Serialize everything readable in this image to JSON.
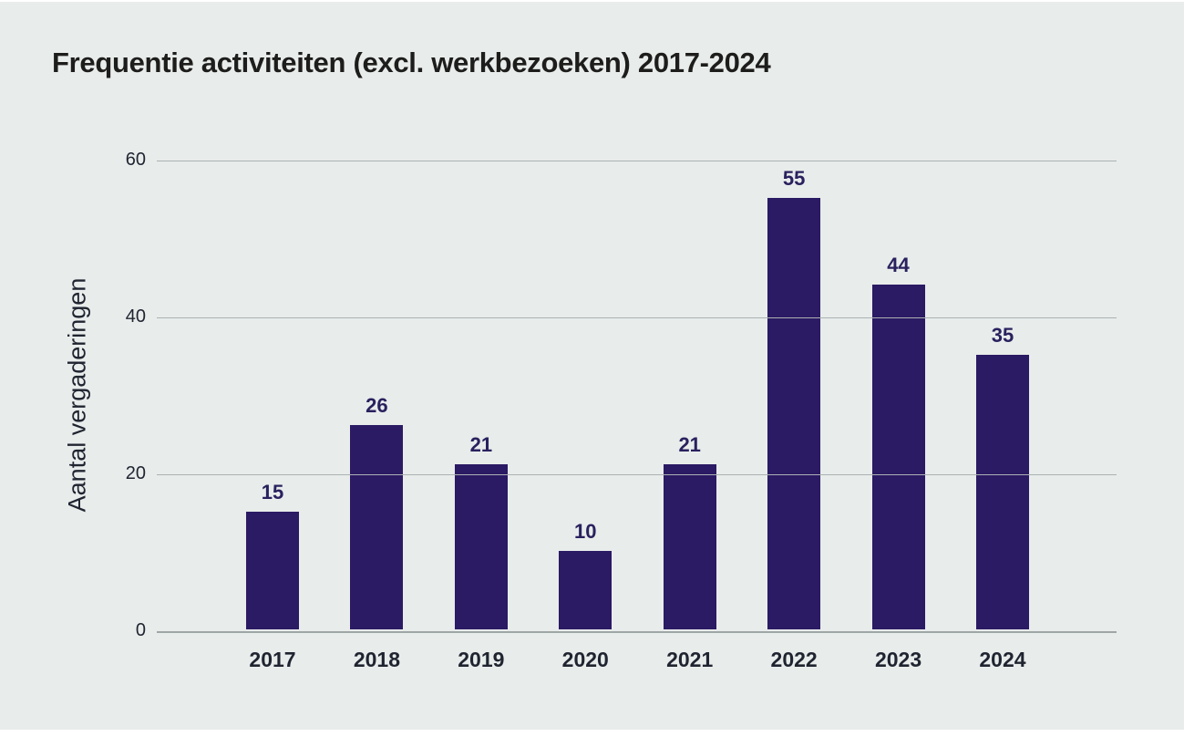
{
  "page": {
    "background": "#e8eceb",
    "frame_color": "#ffffff"
  },
  "chart_data": {
    "type": "bar",
    "title": "Frequentie activiteiten (excl. werkbezoeken) 2017-2024",
    "xlabel": "",
    "ylabel": "Aantal vergaderingen",
    "categories": [
      "2017",
      "2018",
      "2019",
      "2020",
      "2021",
      "2022",
      "2023",
      "2024"
    ],
    "values": [
      15,
      26,
      21,
      10,
      21,
      55,
      44,
      35
    ],
    "yticks": [
      60,
      40,
      20,
      0
    ],
    "ylim": [
      0,
      60
    ],
    "grid": "horizontal",
    "legend_position": "none",
    "colors": {
      "bar": "#2b1a64",
      "value_label": "#29215e",
      "axis_text": "#1f2430",
      "title": "#1d1d1b",
      "gridline": "#abb2b2",
      "baseline": "#9fa6a6"
    }
  }
}
